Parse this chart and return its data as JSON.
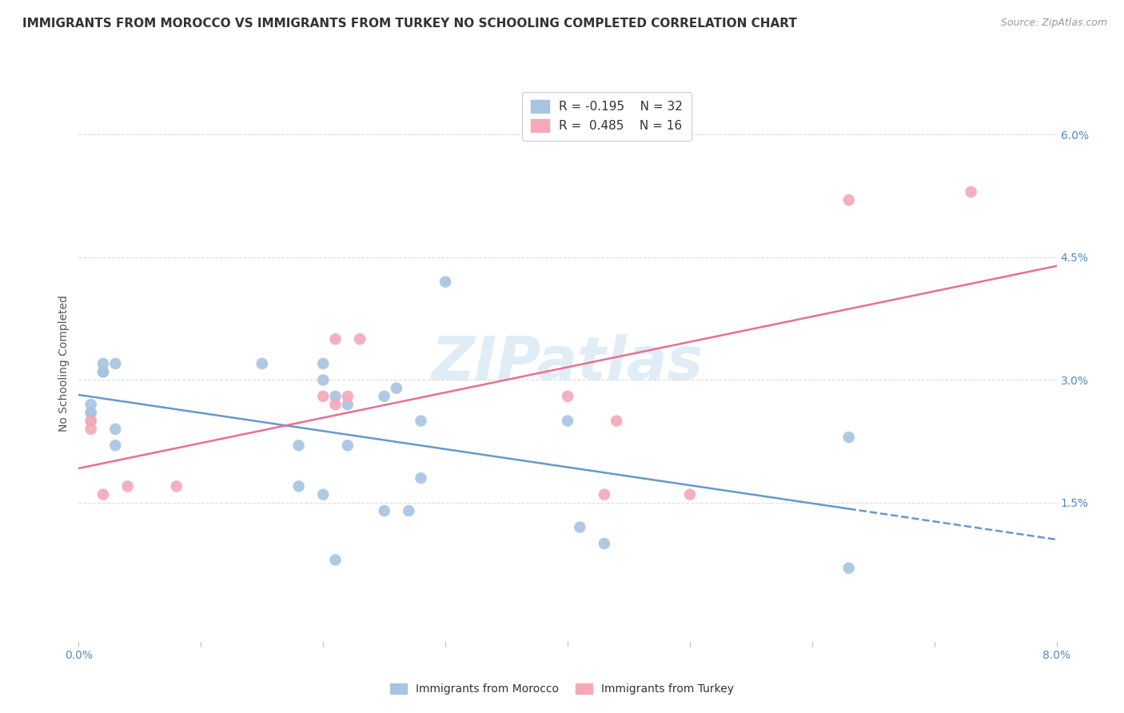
{
  "title": "IMMIGRANTS FROM MOROCCO VS IMMIGRANTS FROM TURKEY NO SCHOOLING COMPLETED CORRELATION CHART",
  "source": "Source: ZipAtlas.com",
  "ylabel": "No Schooling Completed",
  "xlabel": "",
  "xlim": [
    0.0,
    0.08
  ],
  "ylim": [
    -0.002,
    0.066
  ],
  "yticks": [
    0.015,
    0.03,
    0.045,
    0.06
  ],
  "ytick_labels": [
    "1.5%",
    "3.0%",
    "4.5%",
    "6.0%"
  ],
  "xticks": [
    0.0,
    0.01,
    0.02,
    0.03,
    0.04,
    0.05,
    0.06,
    0.07,
    0.08
  ],
  "xtick_labels": [
    "0.0%",
    "",
    "",
    "",
    "",
    "",
    "",
    "",
    "8.0%"
  ],
  "watermark": "ZIPatlas",
  "morocco_color": "#a8c4e0",
  "turkey_color": "#f4a8b8",
  "morocco_line_color": "#6699cc",
  "turkey_line_color": "#e87090",
  "legend_R_morocco": "R = -0.195",
  "legend_N_morocco": "N = 32",
  "legend_R_turkey": "R =  0.485",
  "legend_N_turkey": "N = 16",
  "morocco_x": [
    0.001,
    0.001,
    0.001,
    0.001,
    0.002,
    0.002,
    0.002,
    0.003,
    0.003,
    0.003,
    0.015,
    0.018,
    0.018,
    0.02,
    0.02,
    0.02,
    0.021,
    0.021,
    0.022,
    0.022,
    0.025,
    0.025,
    0.026,
    0.027,
    0.028,
    0.028,
    0.03,
    0.04,
    0.041,
    0.043,
    0.063,
    0.063
  ],
  "morocco_y": [
    0.025,
    0.026,
    0.026,
    0.027,
    0.031,
    0.031,
    0.032,
    0.022,
    0.024,
    0.032,
    0.032,
    0.017,
    0.022,
    0.016,
    0.03,
    0.032,
    0.008,
    0.028,
    0.022,
    0.027,
    0.014,
    0.028,
    0.029,
    0.014,
    0.018,
    0.025,
    0.042,
    0.025,
    0.012,
    0.01,
    0.007,
    0.023
  ],
  "turkey_x": [
    0.001,
    0.001,
    0.002,
    0.004,
    0.008,
    0.02,
    0.021,
    0.021,
    0.022,
    0.023,
    0.04,
    0.043,
    0.044,
    0.05,
    0.063,
    0.073
  ],
  "turkey_y": [
    0.024,
    0.025,
    0.016,
    0.017,
    0.017,
    0.028,
    0.027,
    0.035,
    0.028,
    0.035,
    0.028,
    0.016,
    0.025,
    0.016,
    0.052,
    0.053
  ],
  "background_color": "#ffffff",
  "grid_color": "#dddddd",
  "title_fontsize": 11,
  "axis_label_fontsize": 10,
  "tick_fontsize": 10,
  "tick_color": "#5588bb",
  "title_color": "#333333"
}
